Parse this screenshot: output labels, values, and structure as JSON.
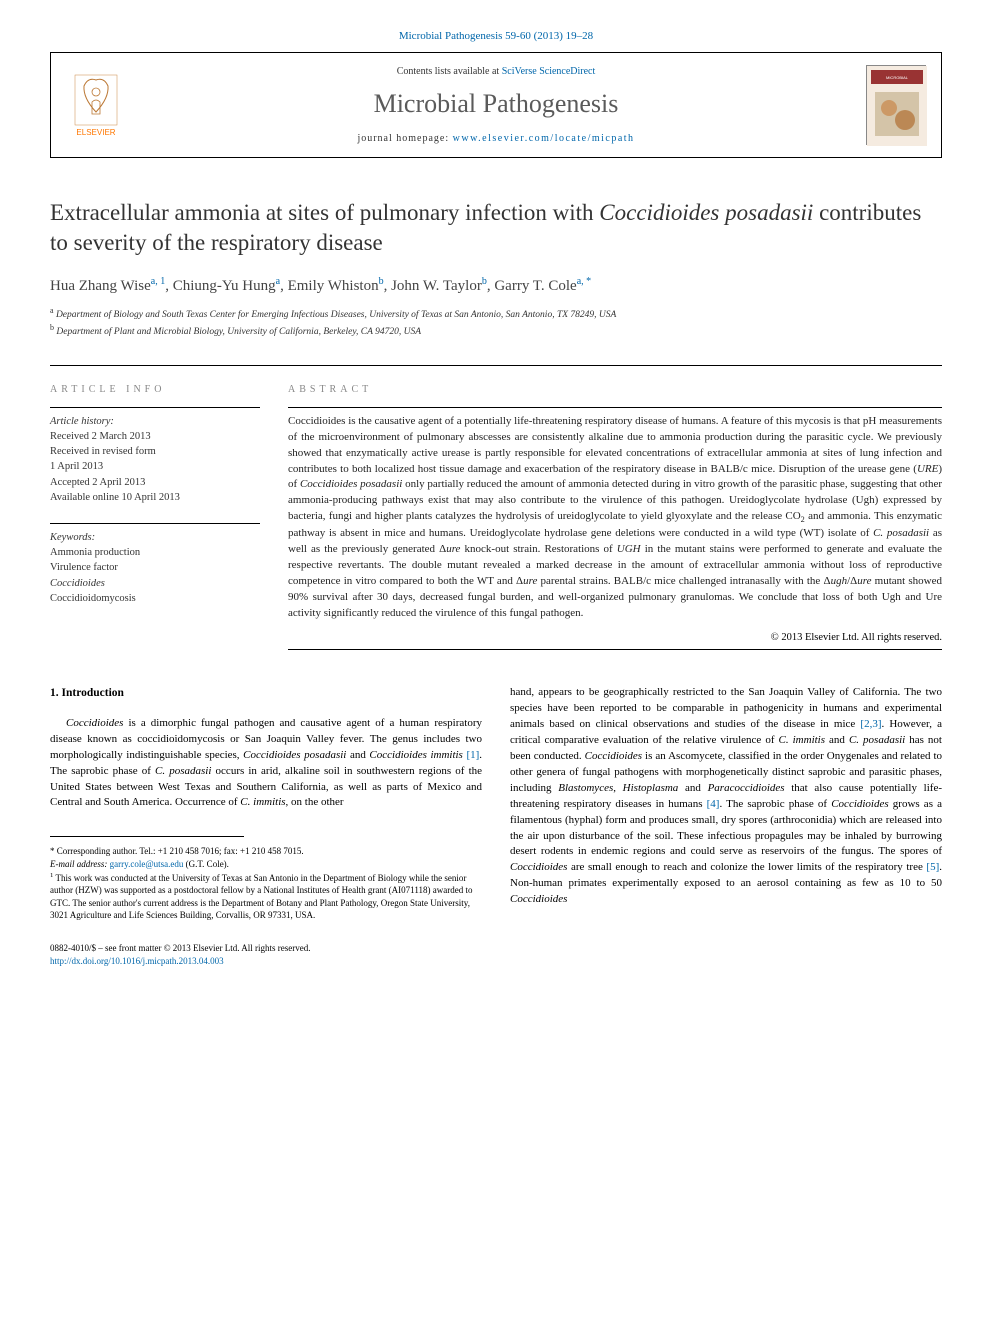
{
  "topRef": "Microbial Pathogenesis 59-60 (2013) 19–28",
  "elsevierLabel": "ELSEVIER",
  "contentsPrefix": "Contents lists available at ",
  "contentsLink": "SciVerse ScienceDirect",
  "journalName": "Microbial Pathogenesis",
  "homepagePrefix": "journal homepage: ",
  "homepageLink": "www.elsevier.com/locate/micpath",
  "title": {
    "pre": "Extracellular ammonia at sites of pulmonary infection with ",
    "italic": "Coccidioides posadasii",
    "post": " contributes to severity of the respiratory disease"
  },
  "authors": [
    {
      "name": "Hua Zhang Wise",
      "sup": "a, 1"
    },
    {
      "name": "Chiung-Yu Hung",
      "sup": "a"
    },
    {
      "name": "Emily Whiston",
      "sup": "b"
    },
    {
      "name": "John W. Taylor",
      "sup": "b"
    },
    {
      "name": "Garry T. Cole",
      "sup": "a, *"
    }
  ],
  "affiliations": [
    {
      "sup": "a",
      "text": "Department of Biology and South Texas Center for Emerging Infectious Diseases, University of Texas at San Antonio, San Antonio, TX 78249, USA"
    },
    {
      "sup": "b",
      "text": "Department of Plant and Microbial Biology, University of California, Berkeley, CA 94720, USA"
    }
  ],
  "articleInfo": {
    "heading": "article info",
    "historyLabel": "Article history:",
    "history": [
      "Received 2 March 2013",
      "Received in revised form",
      "1 April 2013",
      "Accepted 2 April 2013",
      "Available online 10 April 2013"
    ],
    "keywordsLabel": "Keywords:",
    "keywords": [
      "Ammonia production",
      "Virulence factor",
      "Coccidioides",
      "Coccidioidomycosis"
    ]
  },
  "abstract": {
    "heading": "abstract",
    "copyright": "© 2013 Elsevier Ltd. All rights reserved."
  },
  "introHeading": "1. Introduction",
  "footnotes": {
    "corresponding": "* Corresponding author. Tel.: +1 210 458 7016; fax: +1 210 458 7015.",
    "emailLabel": "E-mail address:",
    "email": "garry.cole@utsa.edu",
    "emailSuffix": " (G.T. Cole).",
    "note1Sup": "1",
    "note1": " This work was conducted at the University of Texas at San Antonio in the Department of Biology while the senior author (HZW) was supported as a postdoctoral fellow by a National Institutes of Health grant (AI071118) awarded to GTC. The senior author's current address is the Department of Botany and Plant Pathology, Oregon State University, 3021 Agriculture and Life Sciences Building, Corvallis, OR 97331, USA."
  },
  "footer": {
    "issn": "0882-4010/$ – see front matter © 2013 Elsevier Ltd. All rights reserved.",
    "doi": "http://dx.doi.org/10.1016/j.micpath.2013.04.003"
  },
  "colors": {
    "link": "#0066aa",
    "elsevier": "#ff7700",
    "headingGray": "#888888",
    "bodyText": "#222222"
  }
}
